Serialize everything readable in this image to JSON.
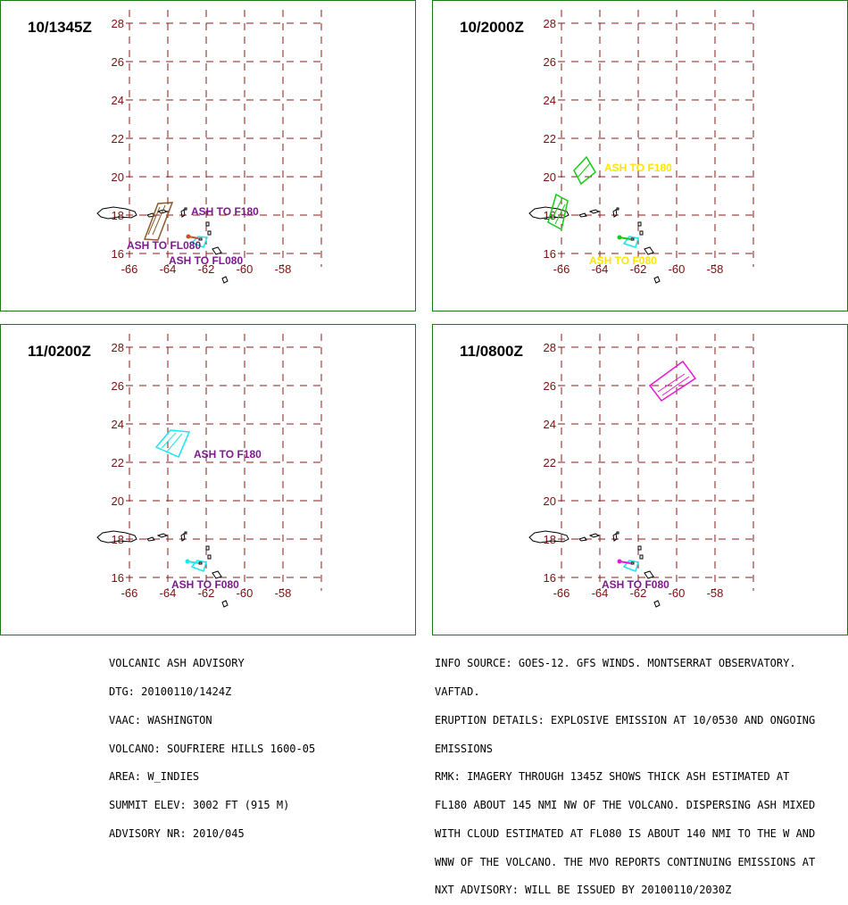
{
  "colors": {
    "grid": "#8b1a1a",
    "tick": "#7a1010",
    "frame": "#1a7a1a",
    "purple": "#7b1a8c",
    "yellow": "#ffe600",
    "green": "#19c819",
    "cyan": "#19e6f0",
    "brown": "#8b5a2b",
    "magenta": "#e619d2"
  },
  "axis": {
    "lon_ticks": [
      "-66",
      "-64",
      "-62",
      "-60",
      "-58"
    ],
    "lat_ticks": [
      "28",
      "26",
      "24",
      "22",
      "20",
      "18",
      "16"
    ]
  },
  "panels": [
    {
      "title": "10/1345Z",
      "labels": [
        {
          "text": "ASH TO F180",
          "color": "purple"
        },
        {
          "text": "ASH TO FL080",
          "color": "purple"
        },
        {
          "text": "ASH TO FL080",
          "color": "purple"
        }
      ]
    },
    {
      "title": "10/2000Z",
      "labels": [
        {
          "text": "ASH TO F180",
          "color": "yellow"
        },
        {
          "text": "ASH TO F080",
          "color": "yellow"
        }
      ]
    },
    {
      "title": "11/0200Z",
      "labels": [
        {
          "text": "ASH TO F180",
          "color": "purple"
        },
        {
          "text": "ASH TO F080",
          "color": "purple"
        }
      ]
    },
    {
      "title": "11/0800Z",
      "labels": [
        {
          "text": "ASH TO F080",
          "color": "purple"
        }
      ]
    }
  ],
  "advisory_left": [
    "VOLCANIC ASH ADVISORY",
    "DTG: 20100110/1424Z",
    "VAAC: WASHINGTON",
    "VOLCANO: SOUFRIERE HILLS 1600-05",
    "AREA: W_INDIES",
    "SUMMIT ELEV: 3002 FT (915 M)",
    "ADVISORY NR: 2010/045"
  ],
  "advisory_right": [
    "INFO SOURCE: GOES-12. GFS WINDS. MONTSERRAT OBSERVATORY.",
    "VAFTAD.",
    "ERUPTION DETAILS: EXPLOSIVE EMISSION AT 10/0530 AND ONGOING",
    "EMISSIONS",
    "RMK: IMAGERY THROUGH 1345Z SHOWS THICK ASH ESTIMATED AT",
    "FL180 ABOUT 145 NMI NW OF THE VOLCANO. DISPERSING ASH MIXED",
    "WITH CLOUD ESTIMATED AT FL080 IS ABOUT 140 NMI TO THE W AND",
    "WNW OF THE VOLCANO. THE MVO REPORTS CONTINUING EMISSIONS AT",
    "NXT ADVISORY: WILL BE ISSUED BY 20100110/2030Z"
  ]
}
